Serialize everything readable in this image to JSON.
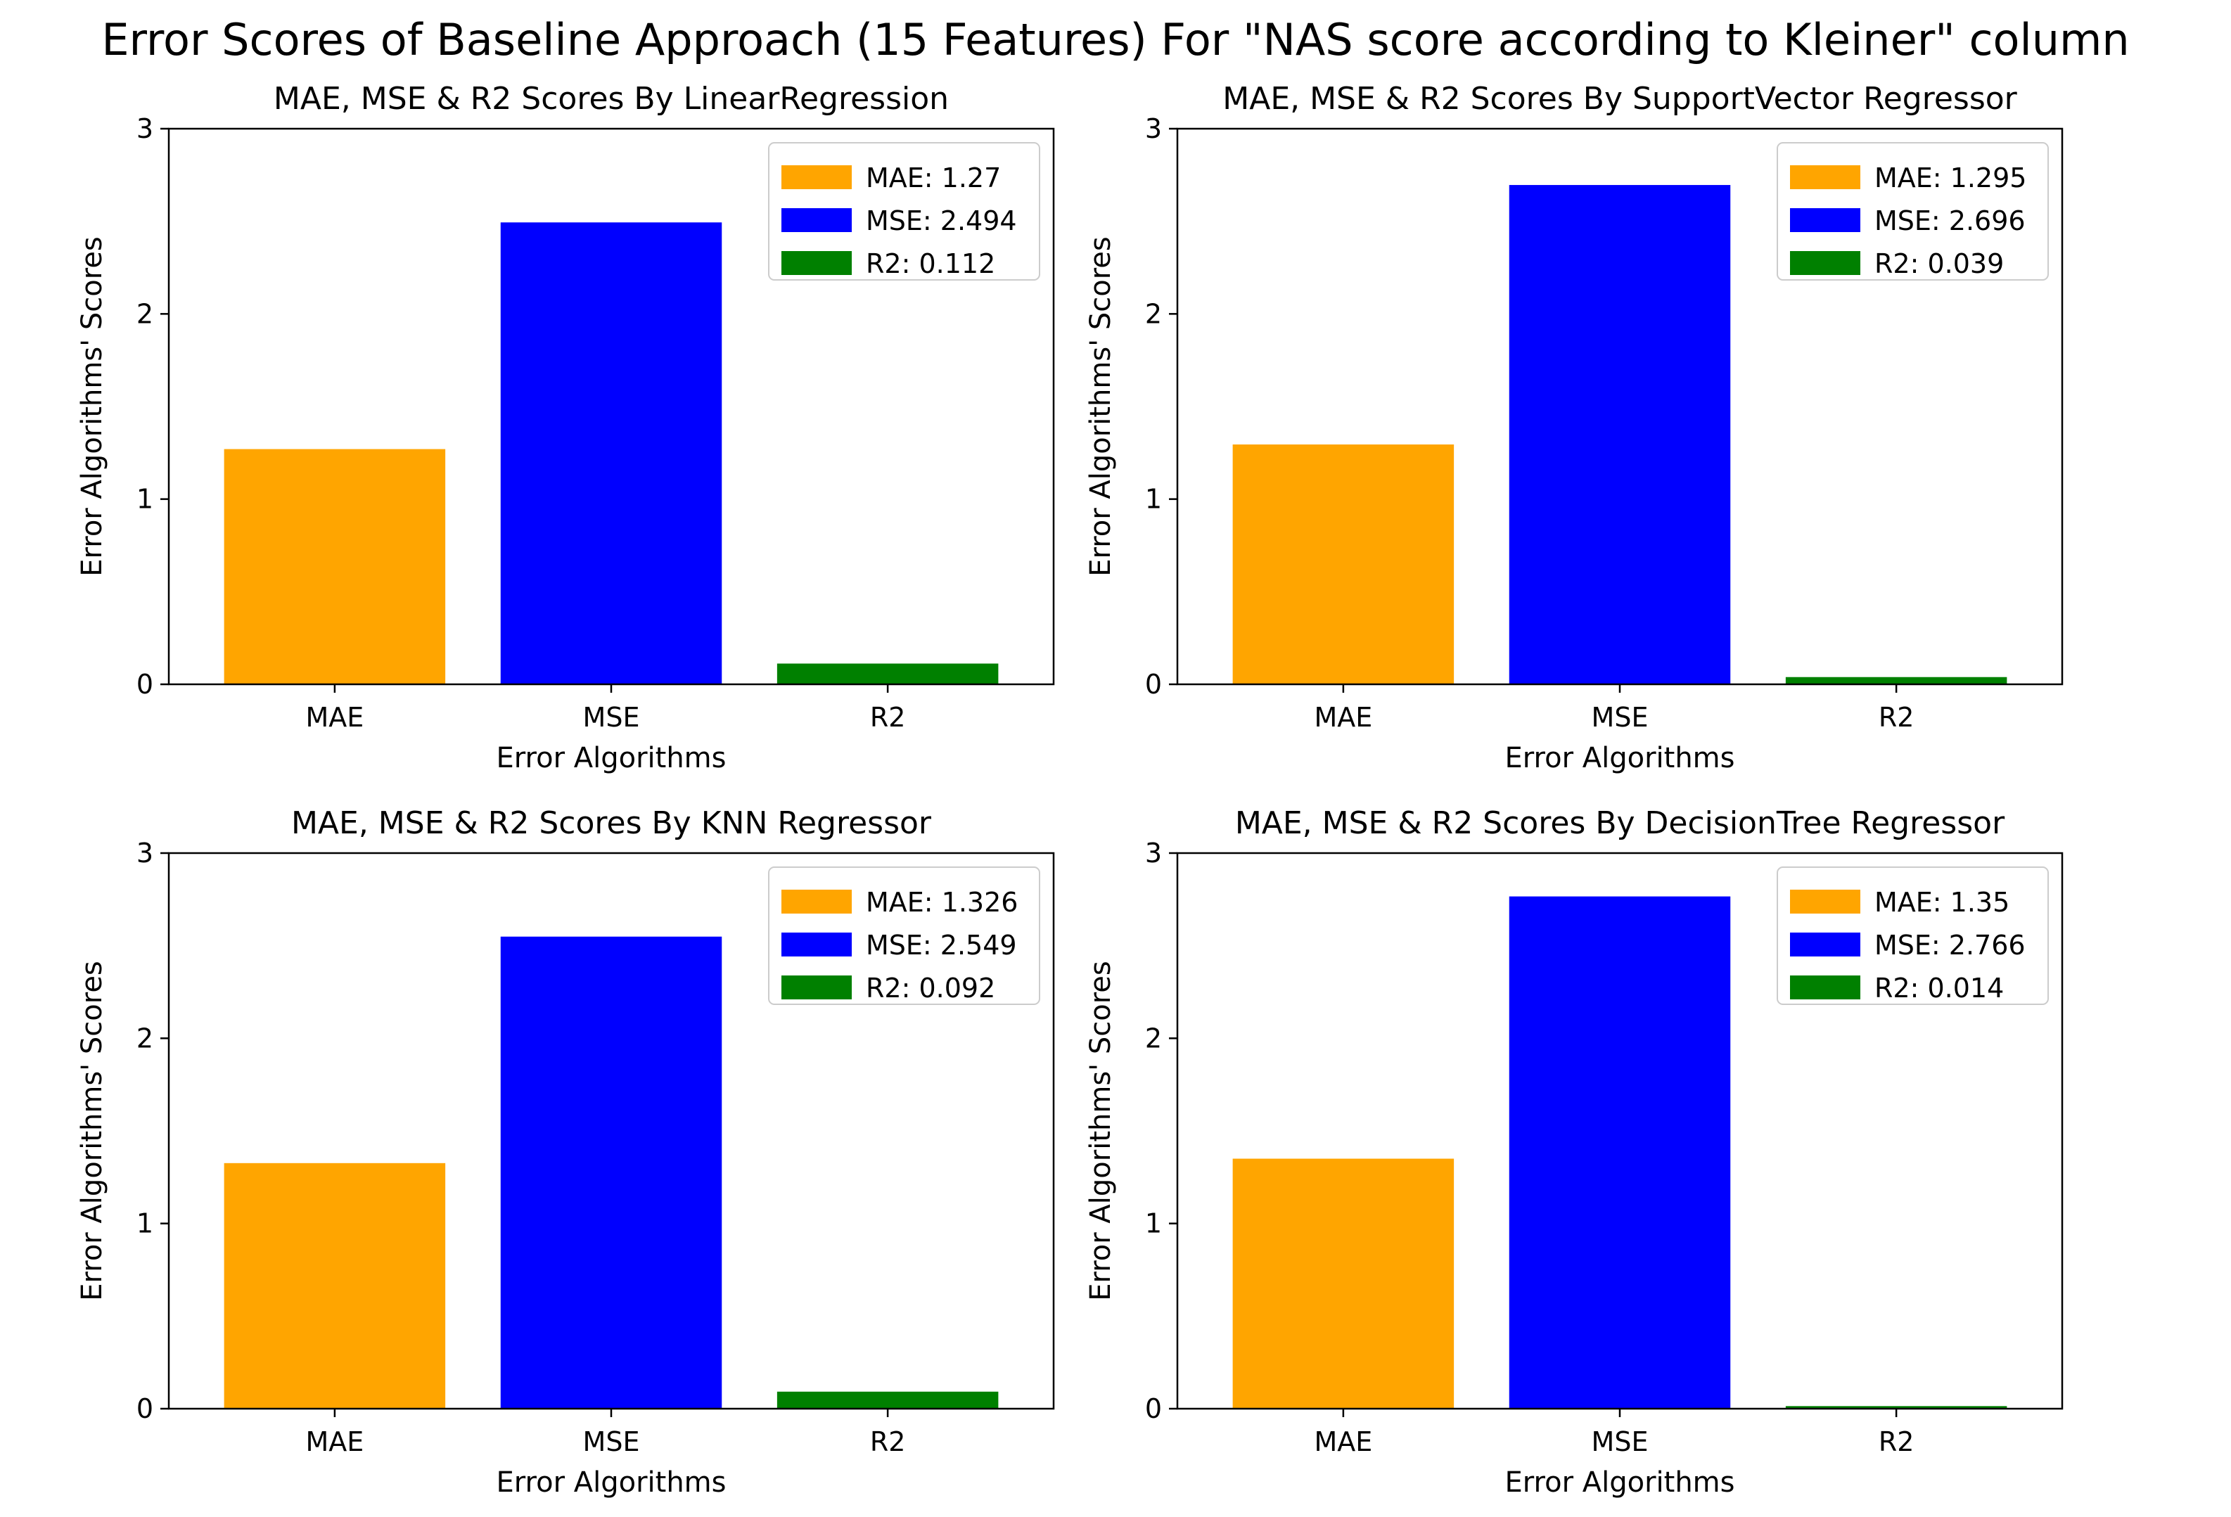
{
  "suptitle": "Error Scores of Baseline Approach (15 Features) For \"NAS score according to Kleiner\" column",
  "chart_data": [
    {
      "type": "bar",
      "title": "MAE, MSE & R2 Scores By LinearRegression",
      "xlabel": "Error Algorithms",
      "ylabel": "Error Algorithms' Scores",
      "categories": [
        "MAE",
        "MSE",
        "R2"
      ],
      "values": [
        1.27,
        2.494,
        0.112
      ],
      "colors": [
        "#FFA500",
        "#0000FF",
        "#008000"
      ],
      "legend": [
        "MAE: 1.27",
        "MSE: 2.494",
        "R2: 0.112"
      ],
      "legend_loc": "upper right",
      "ylim": [
        0,
        3
      ],
      "yticks": [
        "0",
        "1",
        "2",
        "3"
      ],
      "grid": false
    },
    {
      "type": "bar",
      "title": "MAE, MSE & R2 Scores By SupportVector Regressor",
      "xlabel": "Error Algorithms",
      "ylabel": "Error Algorithms' Scores",
      "categories": [
        "MAE",
        "MSE",
        "R2"
      ],
      "values": [
        1.295,
        2.696,
        0.039
      ],
      "colors": [
        "#FFA500",
        "#0000FF",
        "#008000"
      ],
      "legend": [
        "MAE: 1.295",
        "MSE: 2.696",
        "R2: 0.039"
      ],
      "legend_loc": "upper right",
      "ylim": [
        0,
        3
      ],
      "yticks": [
        "0",
        "1",
        "2",
        "3"
      ],
      "grid": false
    },
    {
      "type": "bar",
      "title": "MAE, MSE & R2 Scores By KNN Regressor",
      "xlabel": "Error Algorithms",
      "ylabel": "Error Algorithms' Scores",
      "categories": [
        "MAE",
        "MSE",
        "R2"
      ],
      "values": [
        1.326,
        2.549,
        0.092
      ],
      "colors": [
        "#FFA500",
        "#0000FF",
        "#008000"
      ],
      "legend": [
        "MAE: 1.326",
        "MSE: 2.549",
        "R2: 0.092"
      ],
      "legend_loc": "upper right",
      "ylim": [
        0,
        3
      ],
      "yticks": [
        "0",
        "1",
        "2",
        "3"
      ],
      "grid": false
    },
    {
      "type": "bar",
      "title": "MAE, MSE & R2 Scores By DecisionTree Regressor",
      "xlabel": "Error Algorithms",
      "ylabel": "Error Algorithms' Scores",
      "categories": [
        "MAE",
        "MSE",
        "R2"
      ],
      "values": [
        1.35,
        2.766,
        0.014
      ],
      "colors": [
        "#FFA500",
        "#0000FF",
        "#008000"
      ],
      "legend": [
        "MAE: 1.35",
        "MSE: 2.766",
        "R2: 0.014"
      ],
      "legend_loc": "upper right",
      "ylim": [
        0,
        3
      ],
      "yticks": [
        "0",
        "1",
        "2",
        "3"
      ],
      "grid": false
    }
  ]
}
